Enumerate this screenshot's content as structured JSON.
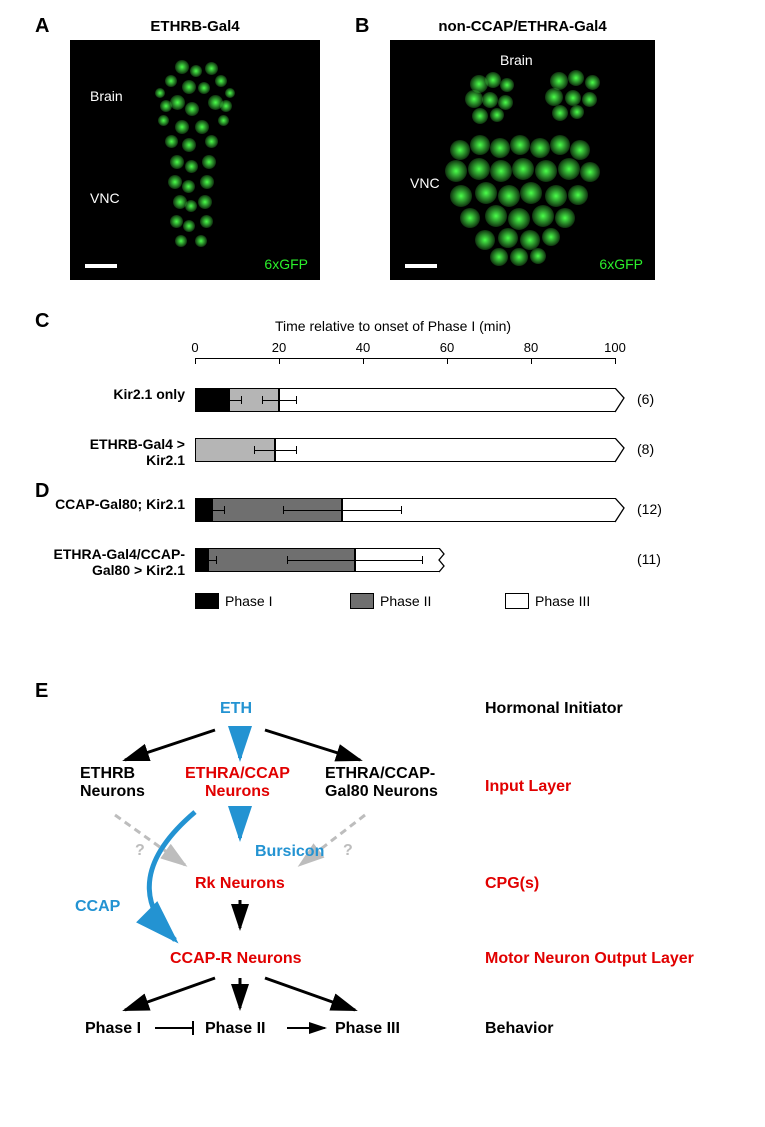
{
  "panels": {
    "A": {
      "label": "A",
      "title": "ETHRB-Gal4",
      "gfp": "6xGFP",
      "regions": {
        "brain": "Brain",
        "vnc": "VNC"
      }
    },
    "B": {
      "label": "B",
      "title": "non-CCAP/ETHRA-Gal4",
      "gfp": "6xGFP",
      "regions": {
        "brain": "Brain",
        "vnc": "VNC"
      }
    },
    "C": {
      "label": "C"
    },
    "D": {
      "label": "D"
    },
    "E": {
      "label": "E"
    }
  },
  "chart": {
    "axis_title": "Time relative to onset of Phase I (min)",
    "xmin": 0,
    "xmax": 100,
    "tick_step": 20,
    "ticks": [
      0,
      20,
      40,
      60,
      80,
      100
    ],
    "tick_fontsize": 13,
    "axis_fontsize": 14,
    "label_fontsize": 14,
    "panel_label_fontsize": 20,
    "colors": {
      "phase1": "#000000",
      "phase2_light": "#b5b5b5",
      "phase2_dark": "#6f6f6f",
      "phase3": "#ffffff",
      "bar_border": "#000000"
    },
    "rows": [
      {
        "panel": "C",
        "label": "Kir2.1 only",
        "n": "(6)",
        "p1": 8,
        "p1_err": 3,
        "p2": 20,
        "p2_err": 4,
        "p3": 100,
        "p2_color": "#b5b5b5",
        "tail_cut": false
      },
      {
        "panel": "C",
        "label": "ETHRB-Gal4 >\nKir2.1",
        "n": "(8)",
        "p1": 0,
        "p1_err": 0,
        "p2": 19,
        "p2_err": 5,
        "p3": 100,
        "p2_color": "#b5b5b5",
        "tail_cut": false
      },
      {
        "panel": "D",
        "label": "CCAP-Gal80; Kir2.1",
        "n": "(12)",
        "p1": 4,
        "p1_err": 3,
        "p2": 35,
        "p2_err": 14,
        "p3": 100,
        "p2_color": "#6f6f6f",
        "tail_cut": false
      },
      {
        "panel": "D",
        "label": "ETHRA-Gal4/CCAP-\nGal80 > Kir2.1",
        "n": "(11)",
        "p1": 3,
        "p1_err": 2,
        "p2": 38,
        "p2_err": 16,
        "p3": 58,
        "p2_color": "#6f6f6f",
        "tail_cut": true
      }
    ],
    "legend": {
      "phase1": "Phase I",
      "phase2": "Phase II",
      "phase3": "Phase III"
    }
  },
  "diagram": {
    "colors": {
      "red": "#e10000",
      "blue": "#2393d2",
      "black": "#000000",
      "grey": "#bdbdbd"
    },
    "fontsize": 16,
    "nodes": {
      "eth": "ETH",
      "ethrb": "ETHRB\nNeurons",
      "ethra_ccap": "ETHRA/CCAP\nNeurons",
      "ethra_gal80": "ETHRA/CCAP-\nGal80 Neurons",
      "bursicon": "Bursicon",
      "rk": "Rk Neurons",
      "ccap": "CCAP",
      "ccapr": "CCAP-R Neurons",
      "p1": "Phase I",
      "p2": "Phase II",
      "p3": "Phase III",
      "hormonal": "Hormonal Initiator",
      "input": "Input Layer",
      "cpg": "CPG(s)",
      "motor": "Motor Neuron Output Layer",
      "behavior": "Behavior"
    }
  }
}
